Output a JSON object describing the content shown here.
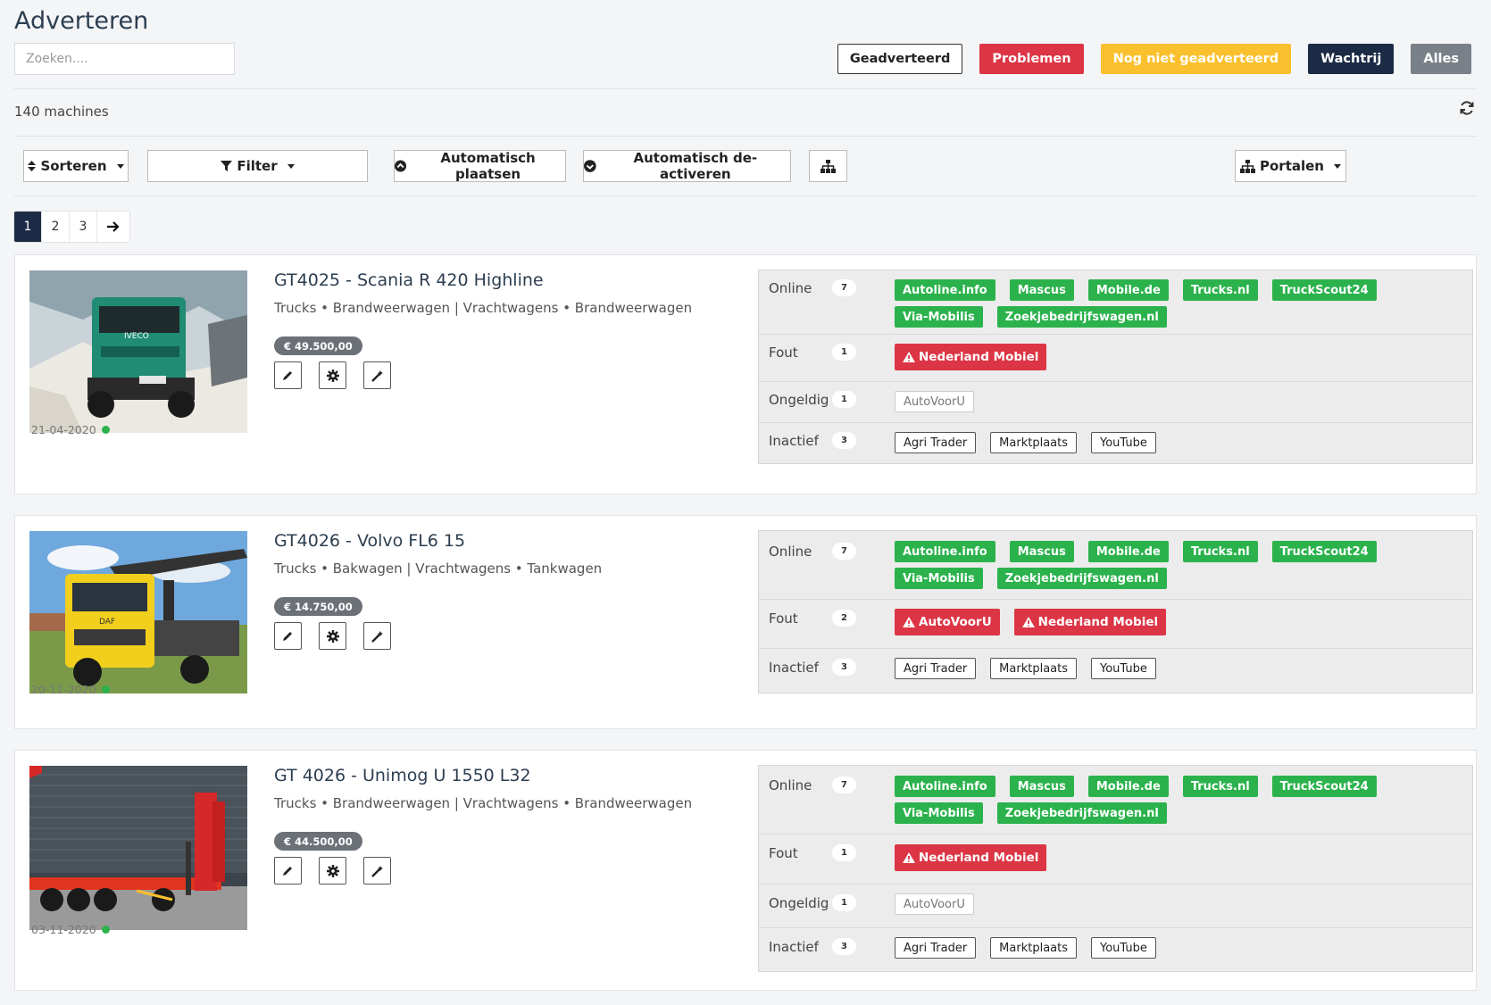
{
  "page": {
    "title": "Adverteren",
    "search_placeholder": "Zoeken...."
  },
  "status_filters": [
    "Geadverteerd",
    "Problemen",
    "Nog niet geadverteerd",
    "Wachtrij",
    "Alles"
  ],
  "count_text": "140 machines",
  "toolbar": {
    "sort": "Sorteren",
    "filter": "Filter",
    "auto_place": "Automatisch plaatsen",
    "auto_deactivate": "Automatisch de-activeren",
    "portals": "Portalen"
  },
  "pagination": {
    "pages": [
      "1",
      "2",
      "3"
    ],
    "current": "1"
  },
  "machines": [
    {
      "title": "GT4025 - Scania R 420 Highline",
      "category": "Trucks • Brandweerwagen | Vrachtwagens • Brandweerwagen",
      "price": "€ 49.500,00",
      "date": "21-04-2020",
      "statuses": [
        {
          "label": "Online",
          "count": "7",
          "portals": [
            "Autoline.info",
            "Mascus",
            "Mobile.de",
            "Trucks.nl",
            "TruckScout24",
            "Via-Mobilis",
            "Zoekjebedrijfswagen.nl"
          ]
        },
        {
          "label": "Fout",
          "count": "1",
          "portals": [
            "Nederland Mobiel"
          ]
        },
        {
          "label": "Ongeldig",
          "count": "1",
          "portals": [
            "AutoVoorU"
          ]
        },
        {
          "label": "Inactief",
          "count": "3",
          "portals": [
            "Agri Trader",
            "Marktplaats",
            "YouTube"
          ]
        }
      ]
    },
    {
      "title": "GT4026 - Volvo FL6 15",
      "category": "Trucks • Bakwagen | Vrachtwagens • Tankwagen",
      "price": "€ 14.750,00",
      "date": "20-11-2020",
      "statuses": [
        {
          "label": "Online",
          "count": "7",
          "portals": [
            "Autoline.info",
            "Mascus",
            "Mobile.de",
            "Trucks.nl",
            "TruckScout24",
            "Via-Mobilis",
            "Zoekjebedrijfswagen.nl"
          ]
        },
        {
          "label": "Fout",
          "count": "2",
          "portals": [
            "AutoVoorU",
            "Nederland Mobiel"
          ]
        },
        {
          "label": "Inactief",
          "count": "3",
          "portals": [
            "Agri Trader",
            "Marktplaats",
            "YouTube"
          ]
        }
      ]
    },
    {
      "title": "GT 4026 - Unimog U 1550 L32",
      "category": "Trucks • Brandweerwagen | Vrachtwagens • Brandweerwagen",
      "price": "€ 44.500,00",
      "date": "03-11-2020",
      "statuses": [
        {
          "label": "Online",
          "count": "7",
          "portals": [
            "Autoline.info",
            "Mascus",
            "Mobile.de",
            "Trucks.nl",
            "TruckScout24",
            "Via-Mobilis",
            "Zoekjebedrijfswagen.nl"
          ]
        },
        {
          "label": "Fout",
          "count": "1",
          "portals": [
            "Nederland Mobiel"
          ]
        },
        {
          "label": "Ongeldig",
          "count": "1",
          "portals": [
            "AutoVoorU"
          ]
        },
        {
          "label": "Inactief",
          "count": "3",
          "portals": [
            "Agri Trader",
            "Marktplaats",
            "YouTube"
          ]
        }
      ]
    }
  ],
  "colors": {
    "navy": "#1c2b45",
    "green": "#2bb24c",
    "red": "#dc3545",
    "yellow": "#fbc02d",
    "grey": "#7a8088"
  }
}
